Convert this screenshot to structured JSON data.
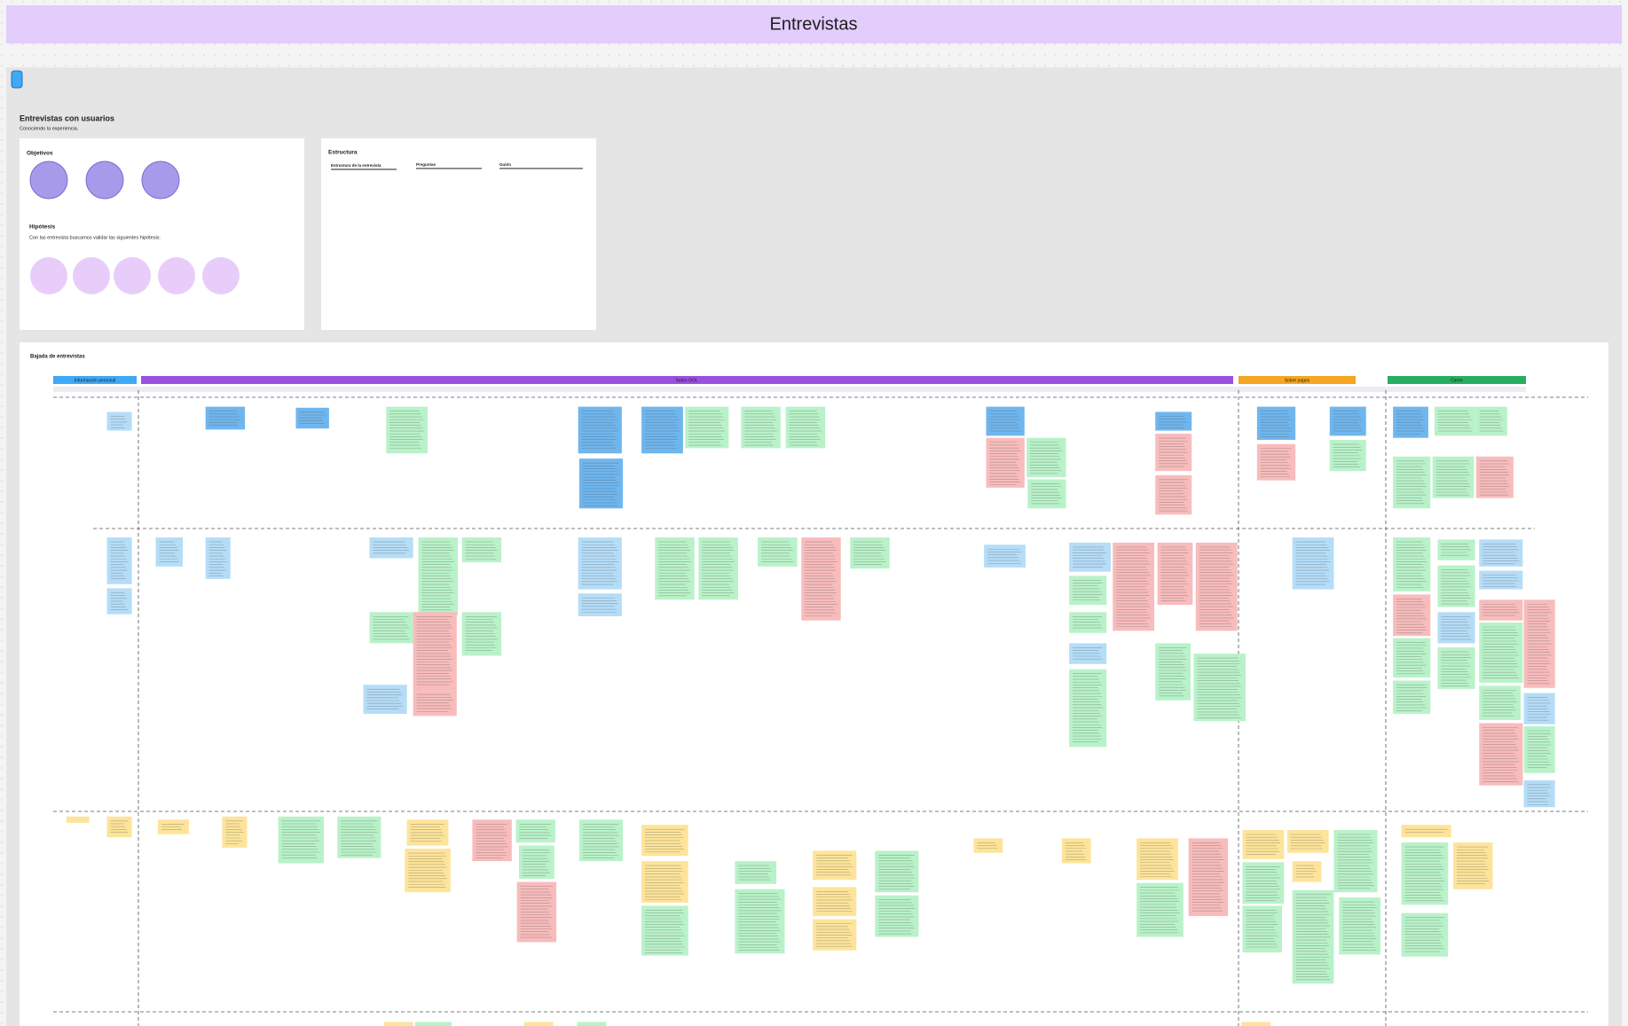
{
  "header": {
    "title": "Entrevistas"
  },
  "board": {
    "title": "Entrevistas con usuarios",
    "subtitle": "Conociendo la experiencia."
  },
  "objectives": {
    "title": "Objetivos"
  },
  "hypotheses": {
    "title": "Hipótesis",
    "intro": "Con las entrevista buscamos validar las siguientes hipótesis:"
  },
  "structure": {
    "title": "Estructura",
    "columns": [
      "Estructura de la entrevista",
      "Preguntas",
      "Guión"
    ]
  },
  "bajada": {
    "title": "Bajada de entrevistas",
    "sections": [
      "Información personal",
      "Sobre GOL",
      "Sobre pagos",
      "Cierre"
    ]
  }
}
